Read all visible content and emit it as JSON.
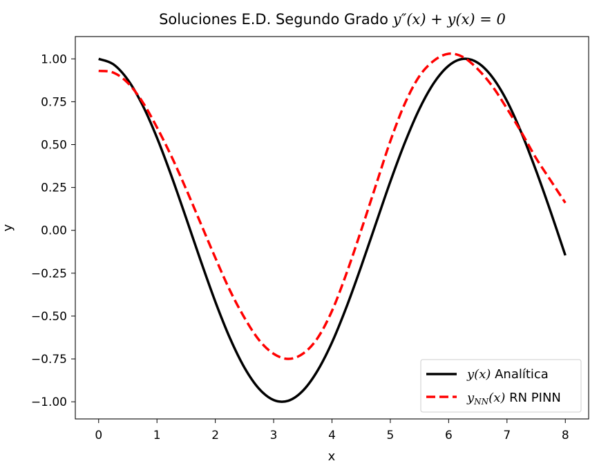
{
  "chart_data": {
    "type": "line",
    "title": {
      "prefix": "Soluciones E.D. Segundo Grado ",
      "equation": "y″(x) + y(x) = 0"
    },
    "xlabel": "x",
    "ylabel": "y",
    "xlim": [
      -0.4,
      8.4
    ],
    "ylim": [
      -1.1,
      1.13
    ],
    "xticks": [
      0,
      1,
      2,
      3,
      4,
      5,
      6,
      7,
      8
    ],
    "xtick_labels": [
      "0",
      "1",
      "2",
      "3",
      "4",
      "5",
      "6",
      "7",
      "8"
    ],
    "yticks": [
      1.0,
      0.75,
      0.5,
      0.25,
      0.0,
      -0.25,
      -0.5,
      -0.75,
      -1.0
    ],
    "ytick_labels": [
      "1.00",
      "0.75",
      "0.50",
      "0.25",
      "0.00",
      "−0.25",
      "−0.50",
      "−0.75",
      "−1.00"
    ],
    "grid": false,
    "legend_position": "lower-right",
    "series": [
      {
        "name": "y(x) Analítica",
        "legend_math": "y(x)",
        "legend_text": " Analítica",
        "color": "#000000",
        "style": "solid",
        "x": [
          0,
          0.25,
          0.5,
          0.75,
          1.0,
          1.25,
          1.5,
          1.75,
          2.0,
          2.25,
          2.5,
          2.75,
          3.0,
          3.25,
          3.5,
          3.75,
          4.0,
          4.25,
          4.5,
          4.75,
          5.0,
          5.25,
          5.5,
          5.75,
          6.0,
          6.25,
          6.5,
          6.75,
          7.0,
          7.25,
          7.5,
          7.75,
          8.0
        ],
        "y": [
          1.0,
          0.969,
          0.878,
          0.732,
          0.54,
          0.315,
          0.071,
          -0.178,
          -0.416,
          -0.628,
          -0.801,
          -0.924,
          -0.99,
          -0.994,
          -0.936,
          -0.82,
          -0.654,
          -0.446,
          -0.211,
          0.037,
          0.284,
          0.512,
          0.709,
          0.861,
          0.96,
          1.0,
          0.977,
          0.893,
          0.754,
          0.567,
          0.347,
          0.107,
          -0.146
        ]
      },
      {
        "name": "yNN(x) RN PINN",
        "legend_math": "y",
        "legend_sub": "NN",
        "legend_math_rest": "(x)",
        "legend_text": " RN PINN",
        "color": "#ff0000",
        "style": "dashed",
        "x": [
          0,
          0.25,
          0.5,
          0.75,
          1.0,
          1.25,
          1.5,
          1.75,
          2.0,
          2.25,
          2.5,
          2.75,
          3.0,
          3.25,
          3.5,
          3.75,
          4.0,
          4.25,
          4.5,
          4.75,
          5.0,
          5.25,
          5.5,
          5.75,
          6.0,
          6.25,
          6.5,
          6.75,
          7.0,
          7.25,
          7.5,
          7.75,
          8.0
        ],
        "y": [
          0.93,
          0.92,
          0.86,
          0.75,
          0.6,
          0.43,
          0.24,
          0.04,
          -0.16,
          -0.35,
          -0.51,
          -0.64,
          -0.72,
          -0.75,
          -0.72,
          -0.63,
          -0.47,
          -0.25,
          0.0,
          0.26,
          0.52,
          0.74,
          0.9,
          0.99,
          1.03,
          1.01,
          0.94,
          0.84,
          0.71,
          0.57,
          0.42,
          0.29,
          0.16
        ]
      }
    ]
  }
}
